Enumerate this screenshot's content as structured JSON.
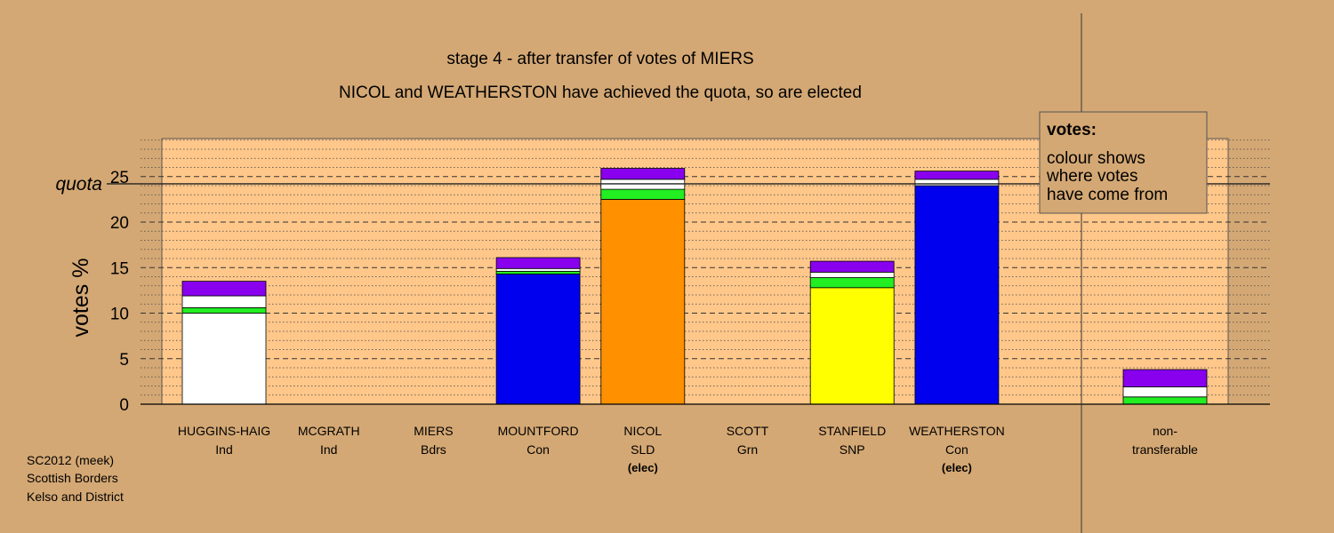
{
  "chart_data": {
    "type": "bar",
    "stacked": true,
    "title": "stage 4 - after transfer of votes of MIERS",
    "subtitle": "NICOL and WEATHERSTON have achieved the quota, so are elected",
    "ylabel": "votes %",
    "ylim": [
      0,
      29.5
    ],
    "yticks": [
      0,
      5,
      10,
      15,
      20,
      25
    ],
    "quota": {
      "label": "quota",
      "value": 24.2
    },
    "grid": true,
    "legend": {
      "title": "votes:",
      "lines": [
        "colour shows",
        "where votes",
        "have come from"
      ],
      "placement": "top-right"
    },
    "candidates": [
      {
        "name": "HUGGINS-HAIG",
        "party": "Ind",
        "note": "",
        "segments": [
          {
            "color": "#ffffff",
            "value": 10.0
          },
          {
            "color": "#22ee22",
            "value": 0.6
          },
          {
            "color": "#ffffff",
            "value": 1.3
          },
          {
            "color": "#8800ee",
            "value": 1.6
          }
        ]
      },
      {
        "name": "MCGRATH",
        "party": "Ind",
        "note": "",
        "segments": []
      },
      {
        "name": "MIERS",
        "party": "Bdrs",
        "note": "",
        "segments": []
      },
      {
        "name": "MOUNTFORD",
        "party": "Con",
        "note": "",
        "segments": [
          {
            "color": "#0000ee",
            "value": 14.3
          },
          {
            "color": "#22ee22",
            "value": 0.3
          },
          {
            "color": "#ffffff",
            "value": 0.3
          },
          {
            "color": "#8800ee",
            "value": 1.2
          }
        ]
      },
      {
        "name": "NICOL",
        "party": "SLD",
        "note": "(elec)",
        "segments": [
          {
            "color": "#ff9100",
            "value": 22.5
          },
          {
            "color": "#22ee22",
            "value": 1.1
          },
          {
            "color": "#ffffff",
            "value": 1.1
          },
          {
            "color": "#8800ee",
            "value": 1.2
          }
        ]
      },
      {
        "name": "SCOTT",
        "party": "Grn",
        "note": "",
        "segments": []
      },
      {
        "name": "STANFIELD",
        "party": "SNP",
        "note": "",
        "segments": [
          {
            "color": "#ffff00",
            "value": 12.8
          },
          {
            "color": "#22ee22",
            "value": 1.1
          },
          {
            "color": "#ffffff",
            "value": 0.6
          },
          {
            "color": "#8800ee",
            "value": 1.2
          }
        ]
      },
      {
        "name": "WEATHERSTON",
        "party": "Con",
        "note": "(elec)",
        "segments": [
          {
            "color": "#0000ee",
            "value": 24.0
          },
          {
            "color": "#ffffff",
            "value": 0.7
          },
          {
            "color": "#8800ee",
            "value": 0.9
          }
        ]
      }
    ],
    "nontransferable": {
      "label_line1": "non-",
      "label_line2": "transferable",
      "segments": [
        {
          "color": "#22ee22",
          "value": 0.8
        },
        {
          "color": "#ffffff",
          "value": 1.1
        },
        {
          "color": "#8800ee",
          "value": 1.9
        }
      ]
    },
    "footer": [
      "SC2012 (meek)",
      "Scottish Borders",
      "Kelso and District"
    ],
    "colors": {
      "background": "#d4a874",
      "plot_area": "#ffc78a"
    }
  }
}
